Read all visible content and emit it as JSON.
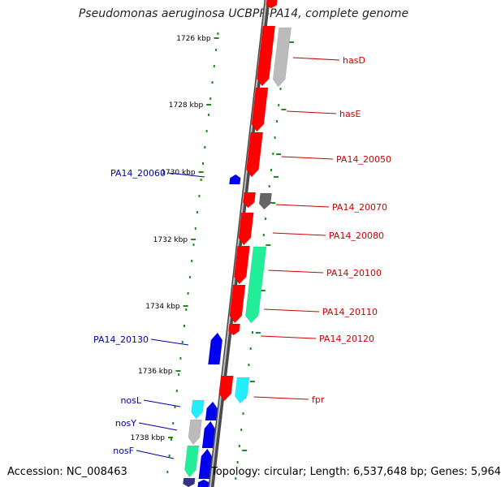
{
  "title": "Pseudomonas aeruginosa UCBPP-PA14, complete genome",
  "footer": {
    "accession": "Accession: NC_008463",
    "stats": "Topology: circular; Length: 6,537,648 bp; Genes: 5,964"
  },
  "colors": {
    "gene_red": "#ff0000",
    "gene_blue": "#0000ee",
    "gene_gray": "#bbbbbb",
    "gene_darkgray": "#666666",
    "gene_green": "#22ee99",
    "gene_cyan": "#22eeff",
    "label_red": "#cc0000",
    "label_blue": "#0000aa",
    "tick_green": "#228822"
  },
  "scale_ticks": [
    "1726 kbp",
    "1728 kbp",
    "1730 kbp",
    "1732 kbp",
    "1734 kbp",
    "1736 kbp",
    "1738 kbp"
  ],
  "gene_labels_right": [
    "hasD",
    "hasE",
    "PA14_20050",
    "PA14_20070",
    "PA14_20080",
    "PA14_20100",
    "PA14_20110",
    "PA14_20120",
    "fpr"
  ],
  "gene_labels_left": [
    "PA14_20060",
    "PA14_20130",
    "nosL",
    "nosY",
    "nosF"
  ]
}
